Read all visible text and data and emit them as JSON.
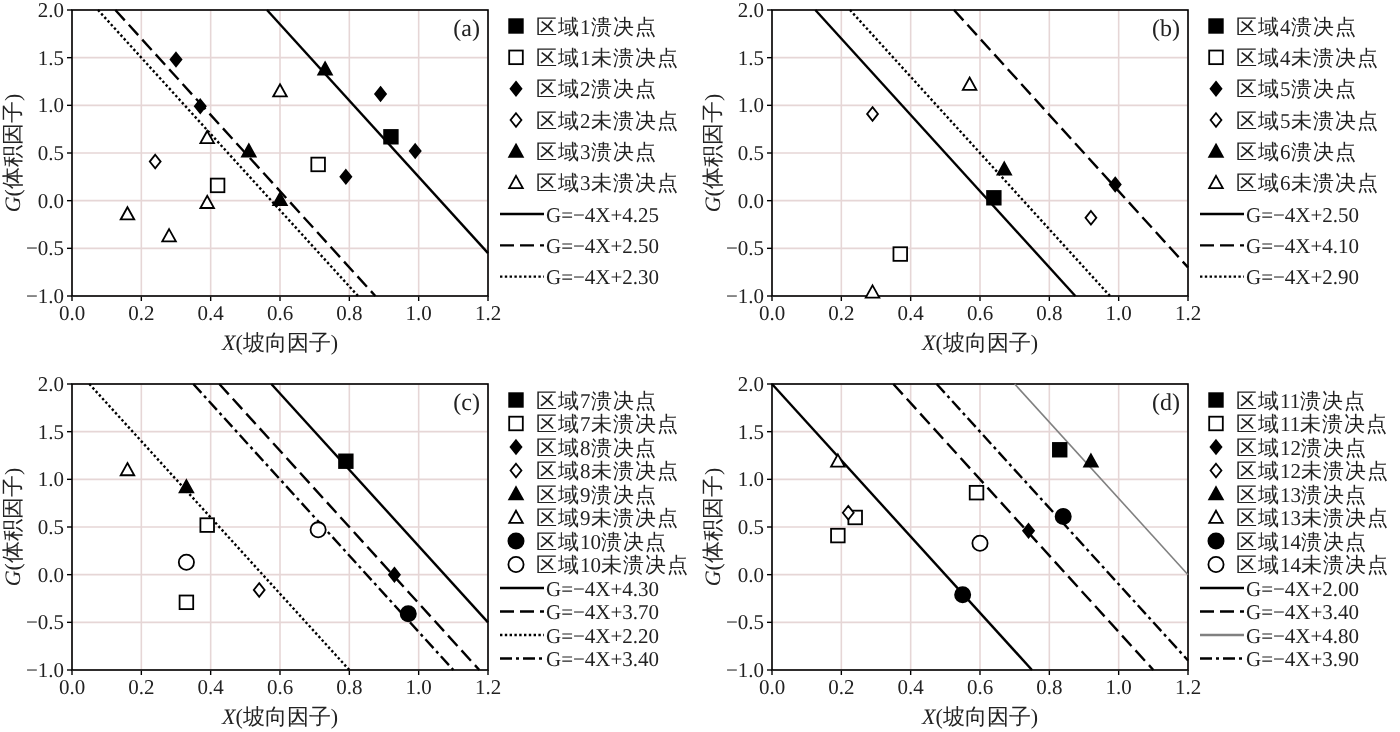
{
  "chart_data": [
    {
      "type": "scatter",
      "title": "(a)",
      "xlabel": "*X*(坡向因子)",
      "ylabel": "*G*(体积因子)",
      "grid": true,
      "legend": "right",
      "xlim": [
        0,
        1.2
      ],
      "xticks": [
        {
          "value": 0,
          "label": "0.0"
        },
        {
          "value": 0.2,
          "label": "0.2"
        },
        {
          "value": 0.4,
          "label": "0.4"
        },
        {
          "value": 0.6,
          "label": "0.6"
        },
        {
          "value": 0.8,
          "label": "0.8"
        },
        {
          "value": 1.0,
          "label": "1.0"
        },
        {
          "value": 1.2,
          "label": "1.2"
        }
      ],
      "ylim": [
        -1,
        2
      ],
      "yticks": [
        {
          "value": -1,
          "label": "−1.0"
        },
        {
          "value": -0.5,
          "label": "−0.5"
        },
        {
          "value": 0,
          "label": "0.0"
        },
        {
          "value": 0.5,
          "label": "0.5"
        },
        {
          "value": 1,
          "label": "1.0"
        },
        {
          "value": 1.5,
          "label": "1.5"
        },
        {
          "value": 2,
          "label": "2.0"
        }
      ],
      "series": [
        {
          "name": "区域1溃决点",
          "color": "#000000",
          "marker": "square",
          "x": [
            0.92
          ],
          "values": [
            0.67
          ]
        },
        {
          "name": "区域1未溃决点",
          "color": "#ffffff",
          "marker": "square",
          "x": [
            0.71,
            0.42
          ],
          "values": [
            0.38,
            0.16
          ]
        },
        {
          "name": "区域2溃决点",
          "color": "#000000",
          "marker": "diamond",
          "x": [
            0.3,
            0.37,
            0.89,
            0.79,
            0.99
          ],
          "values": [
            1.48,
            0.99,
            1.12,
            0.25,
            0.52
          ]
        },
        {
          "name": "区域2未溃决点",
          "color": "#ffffff",
          "marker": "diamond",
          "x": [
            0.24
          ],
          "values": [
            0.41
          ]
        },
        {
          "name": "区域3溃决点",
          "color": "#000000",
          "marker": "triangle",
          "x": [
            0.73,
            0.51,
            0.6
          ],
          "values": [
            1.38,
            0.52,
            0.01
          ]
        },
        {
          "name": "区域3未溃决点",
          "color": "#ffffff",
          "marker": "triangle",
          "x": [
            0.6,
            0.39,
            0.39,
            0.16,
            0.28
          ],
          "values": [
            1.15,
            0.66,
            -0.02,
            -0.14,
            -0.37
          ]
        },
        {
          "name": "G=−4X+4.25",
          "type": "line",
          "color": "#000000",
          "line_style": "solid",
          "x": [
            0.5625,
            1.2
          ],
          "values": [
            2,
            -0.55
          ]
        },
        {
          "name": "G=−4X+2.50",
          "type": "line",
          "color": "#000000",
          "line_style": "dashed",
          "x": [
            0.125,
            0.875
          ],
          "values": [
            2,
            -1
          ]
        },
        {
          "name": "G=−4X+2.30",
          "type": "line",
          "color": "#000000",
          "line_style": "dotted",
          "x": [
            0.075,
            0.825
          ],
          "values": [
            2,
            -1
          ]
        }
      ]
    },
    {
      "type": "scatter",
      "title": "(b)",
      "xlabel": "*X*(坡向因子)",
      "ylabel": "*G*(体积因子)",
      "grid": true,
      "legend": "right",
      "xlim": [
        0,
        1.2
      ],
      "xticks": [
        {
          "value": 0,
          "label": "0.0"
        },
        {
          "value": 0.2,
          "label": "0.2"
        },
        {
          "value": 0.4,
          "label": "0.4"
        },
        {
          "value": 0.6,
          "label": "0.6"
        },
        {
          "value": 0.8,
          "label": "0.8"
        },
        {
          "value": 1.0,
          "label": "1.0"
        },
        {
          "value": 1.2,
          "label": "1.2"
        }
      ],
      "ylim": [
        -1,
        2
      ],
      "yticks": [
        {
          "value": -1,
          "label": "−1.0"
        },
        {
          "value": -0.5,
          "label": "−0.5"
        },
        {
          "value": 0,
          "label": "0.0"
        },
        {
          "value": 0.5,
          "label": "0.5"
        },
        {
          "value": 1,
          "label": "1.0"
        },
        {
          "value": 1.5,
          "label": "1.5"
        },
        {
          "value": 2,
          "label": "2.0"
        }
      ],
      "series": [
        {
          "name": "区域4溃决点",
          "color": "#000000",
          "marker": "square",
          "x": [
            0.64
          ],
          "values": [
            0.03
          ]
        },
        {
          "name": "区域4未溃决点",
          "color": "#ffffff",
          "marker": "square",
          "x": [
            0.37
          ],
          "values": [
            -0.56
          ]
        },
        {
          "name": "区域5溃决点",
          "color": "#000000",
          "marker": "diamond",
          "x": [
            0.99
          ],
          "values": [
            0.17
          ]
        },
        {
          "name": "区域5未溃决点",
          "color": "#ffffff",
          "marker": "diamond",
          "x": [
            0.29,
            0.92
          ],
          "values": [
            0.91,
            -0.18
          ]
        },
        {
          "name": "区域6溃决点",
          "color": "#000000",
          "marker": "triangle",
          "x": [
            0.67
          ],
          "values": [
            0.33
          ]
        },
        {
          "name": "区域6未溃决点",
          "color": "#ffffff",
          "marker": "triangle",
          "x": [
            0.57,
            0.29
          ],
          "values": [
            1.22,
            -0.96
          ]
        },
        {
          "name": "G=−4X+2.50",
          "type": "line",
          "color": "#000000",
          "line_style": "solid",
          "x": [
            0.125,
            0.875
          ],
          "values": [
            2,
            -1
          ]
        },
        {
          "name": "G=−4X+4.10",
          "type": "line",
          "color": "#000000",
          "line_style": "dashed",
          "x": [
            0.525,
            1.2
          ],
          "values": [
            2,
            -0.7
          ]
        },
        {
          "name": "G=−4X+2.90",
          "type": "line",
          "color": "#000000",
          "line_style": "dotted",
          "x": [
            0.225,
            0.975
          ],
          "values": [
            2,
            -1
          ]
        }
      ]
    },
    {
      "type": "scatter",
      "title": "(c)",
      "xlabel": "*X*(坡向因子)",
      "ylabel": "*G*(体积因子)",
      "grid": true,
      "legend": "right",
      "xlim": [
        0,
        1.2
      ],
      "xticks": [
        {
          "value": 0,
          "label": "0.0"
        },
        {
          "value": 0.2,
          "label": "0.2"
        },
        {
          "value": 0.4,
          "label": "0.4"
        },
        {
          "value": 0.6,
          "label": "0.6"
        },
        {
          "value": 0.8,
          "label": "0.8"
        },
        {
          "value": 1.0,
          "label": "1.0"
        },
        {
          "value": 1.2,
          "label": "1.2"
        }
      ],
      "ylim": [
        -1,
        2
      ],
      "yticks": [
        {
          "value": -1,
          "label": "−1.0"
        },
        {
          "value": -0.5,
          "label": "−0.5"
        },
        {
          "value": 0,
          "label": "0.0"
        },
        {
          "value": 0.5,
          "label": "0.5"
        },
        {
          "value": 1,
          "label": "1.0"
        },
        {
          "value": 1.5,
          "label": "1.5"
        },
        {
          "value": 2,
          "label": "2.0"
        }
      ],
      "series": [
        {
          "name": "区域7溃决点",
          "color": "#000000",
          "marker": "square",
          "x": [
            0.79
          ],
          "values": [
            1.19
          ]
        },
        {
          "name": "区域7未溃决点",
          "color": "#ffffff",
          "marker": "square",
          "x": [
            0.39,
            0.33
          ],
          "values": [
            0.52,
            -0.29
          ]
        },
        {
          "name": "区域8溃决点",
          "color": "#000000",
          "marker": "diamond",
          "x": [
            0.93
          ],
          "values": [
            0.0
          ]
        },
        {
          "name": "区域8未溃决点",
          "color": "#ffffff",
          "marker": "diamond",
          "x": [
            0.54
          ],
          "values": [
            -0.16
          ]
        },
        {
          "name": "区域9溃决点",
          "color": "#000000",
          "marker": "triangle",
          "x": [
            0.33
          ],
          "values": [
            0.92
          ]
        },
        {
          "name": "区域9未溃决点",
          "color": "#ffffff",
          "marker": "triangle",
          "x": [
            0.16
          ],
          "values": [
            1.1
          ]
        },
        {
          "name": "区域10溃决点",
          "color": "#000000",
          "marker": "circle",
          "x": [
            0.97
          ],
          "values": [
            -0.41
          ]
        },
        {
          "name": "区域10未溃决点",
          "color": "#ffffff",
          "marker": "circle",
          "x": [
            0.71,
            0.33
          ],
          "values": [
            0.47,
            0.13
          ]
        },
        {
          "name": "G=−4X+4.30",
          "type": "line",
          "color": "#000000",
          "line_style": "solid",
          "x": [
            0.575,
            1.2
          ],
          "values": [
            2,
            -0.5
          ]
        },
        {
          "name": "G=−4X+3.70",
          "type": "line",
          "color": "#000000",
          "line_style": "dashed",
          "x": [
            0.425,
            1.175
          ],
          "values": [
            2,
            -1
          ]
        },
        {
          "name": "G=−4X+2.20",
          "type": "line",
          "color": "#000000",
          "line_style": "dotted",
          "x": [
            0.05,
            0.8
          ],
          "values": [
            2,
            -1
          ]
        },
        {
          "name": "G=−4X+3.40",
          "type": "line",
          "color": "#000000",
          "line_style": "dashdot",
          "x": [
            0.35,
            1.1
          ],
          "values": [
            2,
            -1
          ]
        }
      ]
    },
    {
      "type": "scatter",
      "title": "(d)",
      "xlabel": "*X*(坡向因子)",
      "ylabel": "*G*(体积因子)",
      "grid": true,
      "legend": "right",
      "xlim": [
        0,
        1.2
      ],
      "xticks": [
        {
          "value": 0,
          "label": "0.0"
        },
        {
          "value": 0.2,
          "label": "0.2"
        },
        {
          "value": 0.4,
          "label": "0.4"
        },
        {
          "value": 0.6,
          "label": "0.6"
        },
        {
          "value": 0.8,
          "label": "0.8"
        },
        {
          "value": 1.0,
          "label": "1.0"
        },
        {
          "value": 1.2,
          "label": "1.2"
        }
      ],
      "ylim": [
        -1,
        2
      ],
      "yticks": [
        {
          "value": -1,
          "label": "−1.0"
        },
        {
          "value": -0.5,
          "label": "−0.5"
        },
        {
          "value": 0,
          "label": "0.0"
        },
        {
          "value": 0.5,
          "label": "0.5"
        },
        {
          "value": 1,
          "label": "1.0"
        },
        {
          "value": 1.5,
          "label": "1.5"
        },
        {
          "value": 2,
          "label": "2.0"
        }
      ],
      "series": [
        {
          "name": "区域11溃决点",
          "color": "#000000",
          "marker": "square",
          "x": [
            0.83
          ],
          "values": [
            1.31
          ]
        },
        {
          "name": "区域11未溃决点",
          "color": "#ffffff",
          "marker": "square",
          "x": [
            0.59,
            0.24,
            0.19
          ],
          "values": [
            0.86,
            0.6,
            0.41
          ]
        },
        {
          "name": "区域12溃决点",
          "color": "#000000",
          "marker": "diamond",
          "x": [
            0.74
          ],
          "values": [
            0.46
          ]
        },
        {
          "name": "区域12未溃决点",
          "color": "#ffffff",
          "marker": "diamond",
          "x": [
            0.22
          ],
          "values": [
            0.65
          ]
        },
        {
          "name": "区域13溃决点",
          "color": "#000000",
          "marker": "triangle",
          "x": [
            0.92
          ],
          "values": [
            1.19
          ]
        },
        {
          "name": "区域13未溃决点",
          "color": "#ffffff",
          "marker": "triangle",
          "x": [
            0.19
          ],
          "values": [
            1.19
          ]
        },
        {
          "name": "区域14溃决点",
          "color": "#000000",
          "marker": "circle",
          "x": [
            0.84,
            0.55
          ],
          "values": [
            0.61,
            -0.21
          ]
        },
        {
          "name": "区域14未溃决点",
          "color": "#ffffff",
          "marker": "circle",
          "x": [
            0.6
          ],
          "values": [
            0.33
          ]
        },
        {
          "name": "G=−4X+2.00",
          "type": "line",
          "color": "#000000",
          "line_style": "solid",
          "x": [
            0,
            0.75
          ],
          "values": [
            2,
            -1
          ]
        },
        {
          "name": "G=−4X+3.40",
          "type": "line",
          "color": "#000000",
          "line_style": "dashed",
          "x": [
            0.35,
            1.1
          ],
          "values": [
            2,
            -1
          ]
        },
        {
          "name": "G=−4X+4.80",
          "type": "line",
          "color": "#808080",
          "line_style": "solid",
          "x": [
            0.7,
            1.2
          ],
          "values": [
            2,
            0
          ]
        },
        {
          "name": "G=−4X+3.90",
          "type": "line",
          "color": "#000000",
          "line_style": "dashdot",
          "x": [
            0.475,
            1.2
          ],
          "values": [
            2,
            -0.9
          ]
        }
      ]
    }
  ]
}
